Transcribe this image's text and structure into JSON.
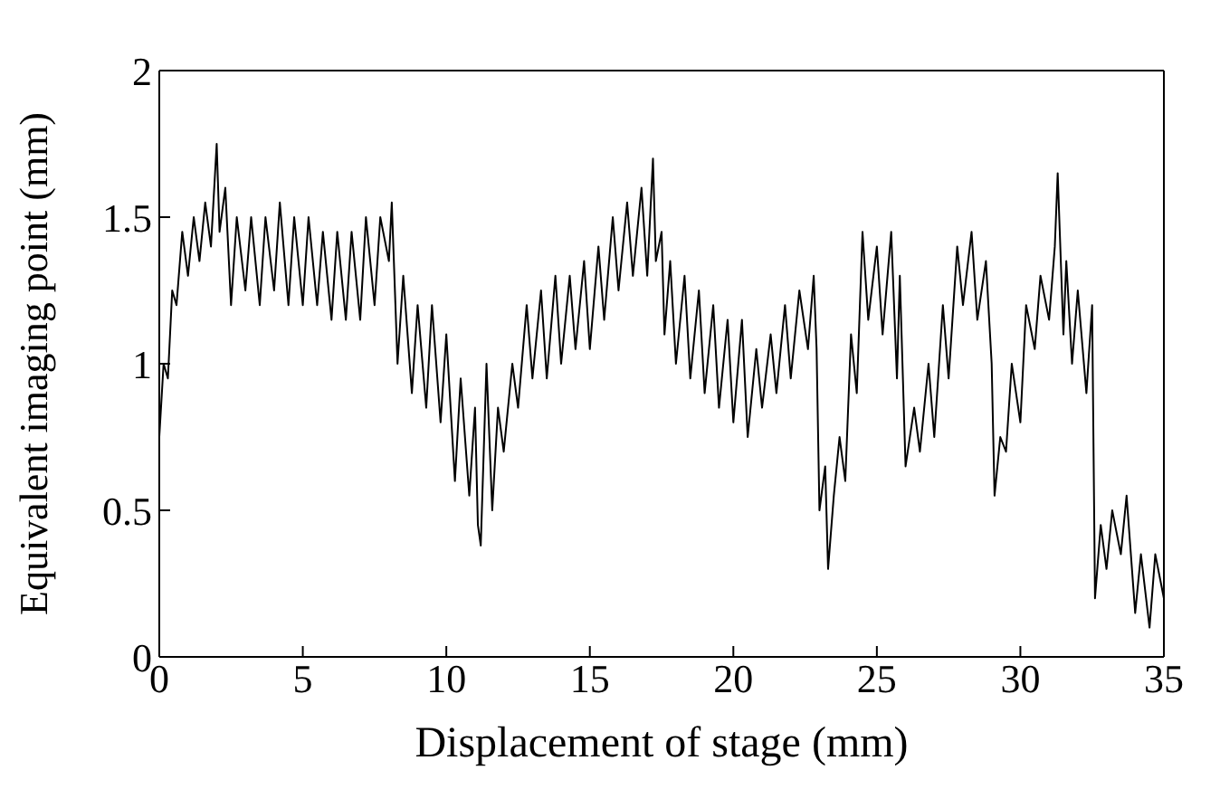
{
  "chart_data": {
    "type": "line",
    "xlabel": "Displacement of stage (mm)",
    "ylabel": "Equivalent imaging point (mm)",
    "x": [
      0,
      0.15,
      0.3,
      0.45,
      0.6,
      0.8,
      1,
      1.2,
      1.4,
      1.6,
      1.8,
      2,
      2.1,
      2.3,
      2.5,
      2.7,
      3,
      3.2,
      3.5,
      3.7,
      4,
      4.2,
      4.5,
      4.7,
      5,
      5.2,
      5.5,
      5.7,
      6,
      6.2,
      6.5,
      6.7,
      7,
      7.2,
      7.5,
      7.7,
      8,
      8.1,
      8.3,
      8.5,
      8.8,
      9,
      9.3,
      9.5,
      9.8,
      10,
      10.3,
      10.5,
      10.8,
      11,
      11.1,
      11.2,
      11.4,
      11.6,
      11.8,
      12,
      12.3,
      12.5,
      12.8,
      13,
      13.3,
      13.5,
      13.8,
      14,
      14.3,
      14.5,
      14.8,
      15,
      15.3,
      15.5,
      15.8,
      16,
      16.3,
      16.5,
      16.8,
      17,
      17.2,
      17.3,
      17.5,
      17.6,
      17.8,
      18,
      18.3,
      18.5,
      18.8,
      19,
      19.3,
      19.5,
      19.8,
      20,
      20.3,
      20.5,
      20.8,
      21,
      21.3,
      21.5,
      21.8,
      22,
      22.3,
      22.6,
      22.8,
      22.9,
      23,
      23.2,
      23.3,
      23.5,
      23.7,
      23.9,
      24.1,
      24.3,
      24.5,
      24.7,
      25,
      25.2,
      25.5,
      25.7,
      25.8,
      26,
      26.3,
      26.5,
      26.8,
      27,
      27.3,
      27.5,
      27.8,
      28,
      28.3,
      28.5,
      28.8,
      29,
      29.1,
      29.3,
      29.5,
      29.7,
      30,
      30.2,
      30.5,
      30.7,
      31,
      31.2,
      31.3,
      31.5,
      31.6,
      31.8,
      32,
      32.3,
      32.5,
      32.6,
      32.8,
      33,
      33.2,
      33.5,
      33.7,
      34,
      34.2,
      34.5,
      34.7,
      35
    ],
    "values": [
      0.75,
      1.0,
      0.95,
      1.25,
      1.2,
      1.45,
      1.3,
      1.5,
      1.35,
      1.55,
      1.4,
      1.75,
      1.45,
      1.6,
      1.2,
      1.5,
      1.25,
      1.5,
      1.2,
      1.5,
      1.25,
      1.55,
      1.2,
      1.5,
      1.2,
      1.5,
      1.2,
      1.45,
      1.15,
      1.45,
      1.15,
      1.45,
      1.15,
      1.5,
      1.2,
      1.5,
      1.35,
      1.55,
      1.0,
      1.3,
      0.9,
      1.2,
      0.85,
      1.2,
      0.8,
      1.1,
      0.6,
      0.95,
      0.55,
      0.85,
      0.45,
      0.38,
      1.0,
      0.5,
      0.85,
      0.7,
      1.0,
      0.85,
      1.2,
      0.95,
      1.25,
      0.95,
      1.3,
      1.0,
      1.3,
      1.05,
      1.35,
      1.05,
      1.4,
      1.15,
      1.5,
      1.25,
      1.55,
      1.3,
      1.6,
      1.3,
      1.7,
      1.35,
      1.45,
      1.1,
      1.35,
      1.0,
      1.3,
      0.95,
      1.25,
      0.9,
      1.2,
      0.85,
      1.15,
      0.8,
      1.15,
      0.75,
      1.05,
      0.85,
      1.1,
      0.9,
      1.2,
      0.95,
      1.25,
      1.05,
      1.3,
      1.05,
      0.5,
      0.65,
      0.3,
      0.55,
      0.75,
      0.6,
      1.1,
      0.9,
      1.45,
      1.15,
      1.4,
      1.1,
      1.45,
      0.95,
      1.3,
      0.65,
      0.85,
      0.7,
      1.0,
      0.75,
      1.2,
      0.95,
      1.4,
      1.2,
      1.45,
      1.15,
      1.35,
      1.0,
      0.55,
      0.75,
      0.7,
      1.0,
      0.8,
      1.2,
      1.05,
      1.3,
      1.15,
      1.4,
      1.65,
      1.1,
      1.35,
      1.0,
      1.25,
      0.9,
      1.2,
      0.2,
      0.45,
      0.3,
      0.5,
      0.35,
      0.55,
      0.15,
      0.35,
      0.1,
      0.35,
      0.2
    ],
    "color": "#000000",
    "xlim": [
      0,
      35
    ],
    "ylim": [
      0,
      2
    ],
    "xticks": [
      0,
      5,
      10,
      15,
      20,
      25,
      30,
      35
    ],
    "yticks": [
      0,
      0.5,
      1,
      1.5,
      2
    ],
    "grid": false,
    "marker": "none",
    "line_style": "solid"
  }
}
